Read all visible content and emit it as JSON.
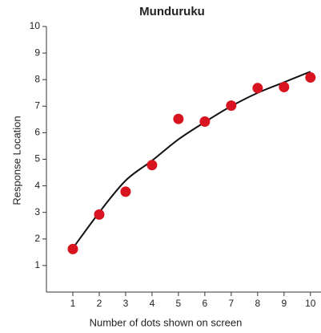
{
  "chart_data": {
    "type": "scatter",
    "title": "Munduruku",
    "xlabel": "Number of dots shown on screen",
    "ylabel": "Response Location",
    "x": [
      1,
      2,
      3,
      4,
      5,
      6,
      7,
      8,
      9,
      10
    ],
    "values": [
      1.62,
      2.92,
      3.78,
      4.78,
      6.52,
      6.42,
      7.02,
      7.68,
      7.72,
      8.08
    ],
    "color": "#d7141f",
    "fit_values": [
      1.65,
      3.0,
      4.2,
      4.95,
      5.75,
      6.4,
      7.0,
      7.5,
      7.9,
      8.3
    ],
    "fit_color": "#111111",
    "xlim": [
      0,
      10.4
    ],
    "xticks": [
      1,
      2,
      3,
      4,
      5,
      6,
      7,
      8,
      9,
      10
    ],
    "ylim": [
      0,
      10
    ],
    "yticks": [
      1,
      2,
      3,
      4,
      5,
      6,
      7,
      8,
      9,
      10
    ],
    "grid": false
  }
}
